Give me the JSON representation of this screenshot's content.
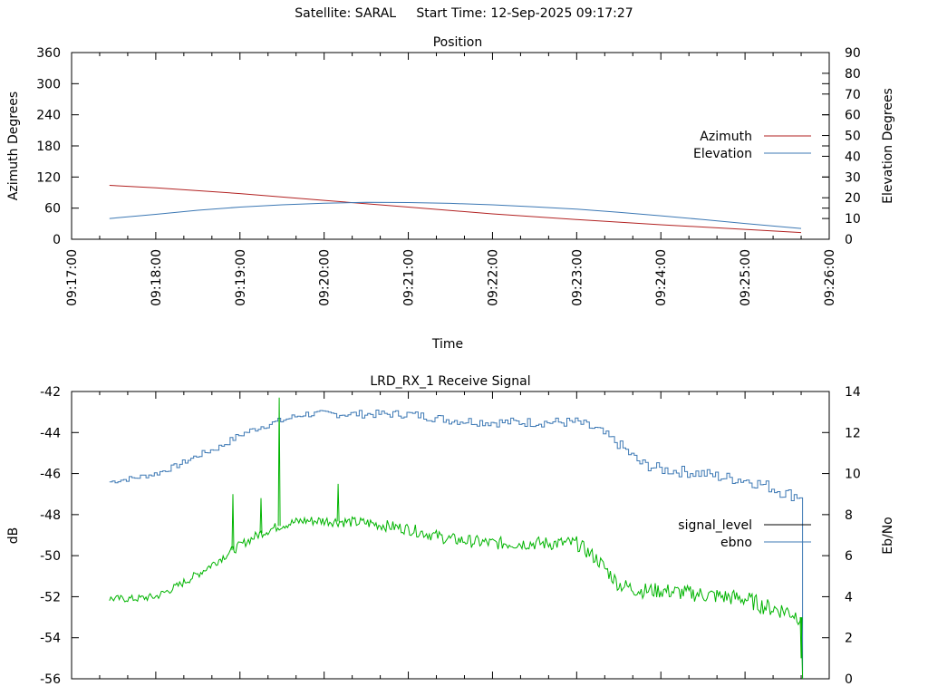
{
  "header": {
    "satellite_label": "Satellite: SARAL",
    "start_time_label": "Start Time: 12-Sep-2025 09:17:27"
  },
  "chart_data": [
    {
      "type": "line",
      "title": "Position",
      "xlabel": "Time",
      "ylabel": "Azimuth Degrees",
      "y2label": "Elevation Degrees",
      "xlim": [
        "09:17:00",
        "09:26:00"
      ],
      "ylim": [
        0,
        360
      ],
      "y2lim": [
        0,
        90
      ],
      "xticks": [
        "09:17:00",
        "09:18:00",
        "09:19:00",
        "09:20:00",
        "09:21:00",
        "09:22:00",
        "09:23:00",
        "09:24:00",
        "09:25:00",
        "09:26:00"
      ],
      "yticks": [
        "0",
        "60",
        "120",
        "180",
        "240",
        "300",
        "360"
      ],
      "y2ticks": [
        "0",
        "10",
        "20",
        "30",
        "40",
        "50",
        "60",
        "70",
        "80",
        "90"
      ],
      "grid": false,
      "legend_position": "right",
      "series": [
        {
          "name": "Azimuth",
          "axis": "y",
          "color": "#b22222",
          "x": [
            "09:17:27",
            "09:18:00",
            "09:19:00",
            "09:20:00",
            "09:21:00",
            "09:22:00",
            "09:23:00",
            "09:24:00",
            "09:25:00",
            "09:25:40"
          ],
          "values": [
            104,
            99,
            88,
            75,
            62,
            49,
            38,
            28,
            19,
            13
          ]
        },
        {
          "name": "Elevation",
          "axis": "y2",
          "color": "#3c78b4",
          "x": [
            "09:17:27",
            "09:18:00",
            "09:18:30",
            "09:19:00",
            "09:19:30",
            "09:20:00",
            "09:20:30",
            "09:21:00",
            "09:21:30",
            "09:22:00",
            "09:22:30",
            "09:23:00",
            "09:23:30",
            "09:24:00",
            "09:24:30",
            "09:25:00",
            "09:25:40"
          ],
          "values": [
            10.0,
            12.0,
            14.0,
            15.5,
            16.6,
            17.4,
            17.8,
            17.7,
            17.3,
            16.6,
            15.6,
            14.5,
            13.0,
            11.3,
            9.5,
            7.6,
            5.2
          ]
        }
      ]
    },
    {
      "type": "line",
      "title": "LRD_RX_1 Receive Signal",
      "ylabel": "dB",
      "y2label": "Eb/No",
      "xlim": [
        "09:17:00",
        "09:26:00"
      ],
      "ylim": [
        -56,
        -42
      ],
      "y2lim": [
        0,
        14
      ],
      "yticks": [
        "-56",
        "-54",
        "-52",
        "-50",
        "-48",
        "-46",
        "-44",
        "-42"
      ],
      "y2ticks": [
        "0",
        "2",
        "4",
        "6",
        "8",
        "10",
        "12",
        "14"
      ],
      "grid": false,
      "legend_position": "right",
      "series": [
        {
          "name": "signal_level",
          "axis": "y",
          "color": "#000000",
          "legend_only": true
        },
        {
          "name": "ebno",
          "axis": "y2",
          "color": "#3c78b4",
          "x": [
            "09:17:27",
            "09:17:45",
            "09:18:00",
            "09:18:15",
            "09:18:30",
            "09:18:45",
            "09:19:00",
            "09:19:15",
            "09:19:30",
            "09:19:45",
            "09:20:00",
            "09:20:30",
            "09:21:00",
            "09:21:30",
            "09:22:00",
            "09:22:30",
            "09:23:00",
            "09:23:15",
            "09:23:30",
            "09:23:45",
            "09:24:00",
            "09:24:15",
            "09:24:30",
            "09:24:45",
            "09:25:00",
            "09:25:15",
            "09:25:30",
            "09:25:40",
            "09:25:41"
          ],
          "values": [
            9.6,
            9.8,
            10.0,
            10.4,
            10.9,
            11.3,
            11.9,
            12.3,
            12.6,
            12.9,
            12.9,
            12.9,
            12.9,
            12.6,
            12.5,
            12.5,
            12.5,
            12.1,
            11.4,
            10.5,
            10.2,
            10.1,
            10.0,
            9.8,
            9.7,
            9.4,
            9.0,
            8.9,
            0.0
          ]
        },
        {
          "name": "signal_level (green trace)",
          "axis": "y",
          "color": "#00b400",
          "x": [
            "09:17:27",
            "09:17:45",
            "09:18:00",
            "09:18:15",
            "09:18:30",
            "09:18:45",
            "09:19:00",
            "09:19:15",
            "09:19:30",
            "09:19:45",
            "09:20:00",
            "09:20:30",
            "09:21:00",
            "09:21:30",
            "09:22:00",
            "09:22:30",
            "09:23:00",
            "09:23:15",
            "09:23:30",
            "09:23:45",
            "09:24:00",
            "09:24:15",
            "09:24:30",
            "09:24:45",
            "09:25:00",
            "09:25:15",
            "09:25:30",
            "09:25:40",
            "09:25:41"
          ],
          "values": [
            -52.1,
            -52.1,
            -52.0,
            -51.5,
            -50.9,
            -50.2,
            -49.5,
            -48.9,
            -48.5,
            -48.3,
            -48.3,
            -48.4,
            -48.7,
            -49.2,
            -49.4,
            -49.4,
            -49.4,
            -50.2,
            -51.4,
            -51.7,
            -51.7,
            -51.8,
            -51.9,
            -52.0,
            -52.1,
            -52.5,
            -52.7,
            -53.0,
            -56.0
          ],
          "spikes": [
            {
              "x": "09:18:55",
              "value": -47.0
            },
            {
              "x": "09:19:15",
              "value": -47.2
            },
            {
              "x": "09:19:28",
              "value": -42.3
            },
            {
              "x": "09:20:10",
              "value": -46.5
            },
            {
              "x": "09:25:40",
              "value": -55.0
            }
          ]
        }
      ]
    }
  ]
}
